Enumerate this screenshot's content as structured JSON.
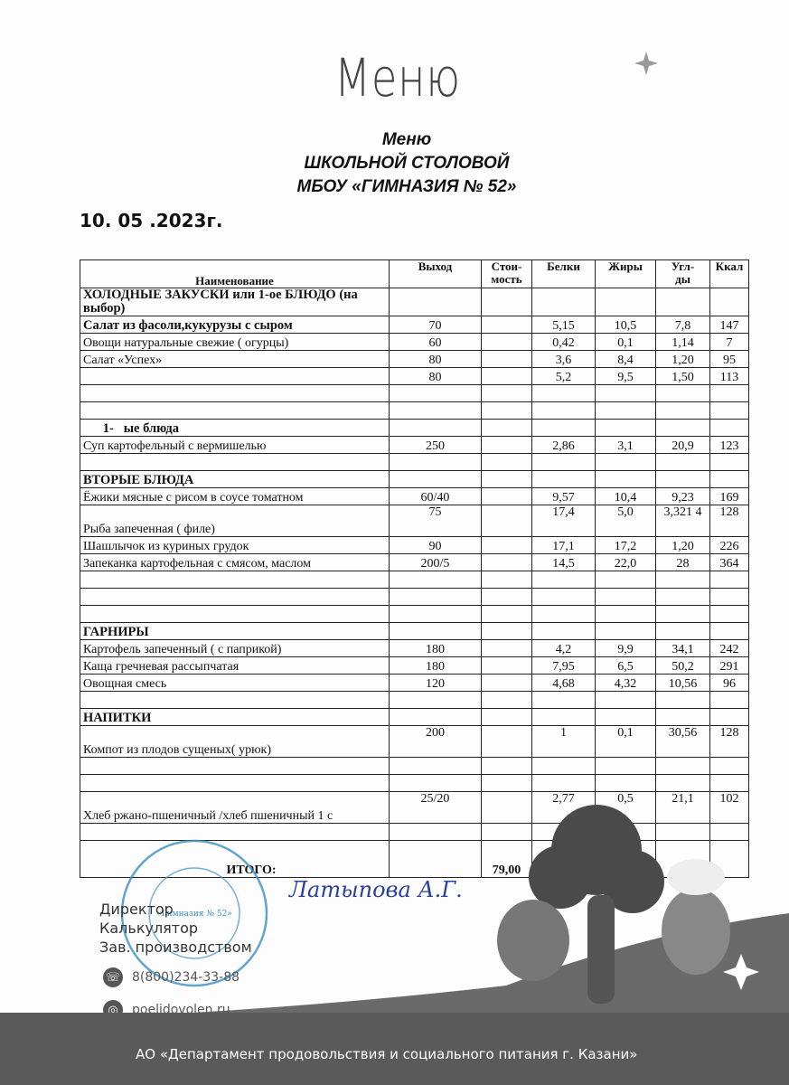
{
  "hand_title": "Меню",
  "header": {
    "line1": "Меню",
    "line2": "ШКОЛЬНОЙ СТОЛОВОЙ",
    "line3": "МБОУ «ГИМНАЗИЯ № 52»"
  },
  "date": "10. 05 .2023г.",
  "table": {
    "columns": [
      "Наименование",
      "Выход",
      "Стои-\nмость",
      "Белки",
      "Жиры",
      "Угл-\nды",
      "Ккал"
    ],
    "rows": [
      {
        "type": "section",
        "name": "ХОЛОДНЫЕ ЗАКУСКИ или 1-ое БЛЮДО (на выбор)",
        "cells": [
          "",
          "",
          "",
          "",
          "",
          ""
        ]
      },
      {
        "type": "section",
        "name": "Салат из фасоли,кукурузы с сыром",
        "cells": [
          "70",
          "",
          "5,15",
          "10,5",
          "7,8",
          "147"
        ]
      },
      {
        "type": "item",
        "name": "Овощи натуральные свежие ( огурцы)",
        "cells": [
          "60",
          "",
          "0,42",
          "0,1",
          "1,14",
          "7"
        ]
      },
      {
        "type": "item",
        "name": "Салат «Успех»",
        "cells": [
          "80",
          "",
          "3,6",
          "8,4",
          "1,20",
          "95"
        ]
      },
      {
        "type": "item",
        "name": "",
        "cells": [
          "80",
          "",
          "5,2",
          "9,5",
          "1,50",
          "113"
        ]
      },
      {
        "type": "item",
        "name": "",
        "cells": [
          "",
          "",
          "",
          "",
          "",
          ""
        ]
      },
      {
        "type": "item",
        "name": "",
        "cells": [
          "",
          "",
          "",
          "",
          "",
          ""
        ]
      },
      {
        "type": "section",
        "name": "      1-   ые блюда",
        "cells": [
          "",
          "",
          "",
          "",
          "",
          ""
        ]
      },
      {
        "type": "item",
        "name": "Суп картофельный с вермишелью",
        "cells": [
          "250",
          "",
          "2,86",
          "3,1",
          "20,9",
          "123"
        ]
      },
      {
        "type": "item",
        "name": "",
        "cells": [
          "",
          "",
          "",
          "",
          "",
          ""
        ]
      },
      {
        "type": "section",
        "name": "ВТОРЫЕ БЛЮДА",
        "cells": [
          "",
          "",
          "",
          "",
          "",
          ""
        ]
      },
      {
        "type": "item",
        "name": "Ёжики мясные с рисом в соусе томатном",
        "cells": [
          "60/40",
          "",
          "9,57",
          "10,4",
          "9,23",
          "169"
        ]
      },
      {
        "type": "tall",
        "name": "Рыба запеченная ( филе)",
        "cells": [
          "75",
          "",
          "17,4",
          "5,0",
          "3,321 4",
          "128"
        ]
      },
      {
        "type": "item",
        "name": "Шашлычок из куриных грудок",
        "cells": [
          "90",
          "",
          "17,1",
          "17,2",
          "1,20",
          "226"
        ]
      },
      {
        "type": "item",
        "name": "Запеканка картофельная с смясом, маслом",
        "cells": [
          "200/5",
          "",
          "14,5",
          "22,0",
          "28",
          "364"
        ]
      },
      {
        "type": "item",
        "name": "",
        "cells": [
          "",
          "",
          "",
          "",
          "",
          ""
        ]
      },
      {
        "type": "item",
        "name": "",
        "cells": [
          "",
          "",
          "",
          "",
          "",
          ""
        ]
      },
      {
        "type": "item",
        "name": "",
        "cells": [
          "",
          "",
          "",
          "",
          "",
          ""
        ]
      },
      {
        "type": "section",
        "name": "ГАРНИРЫ",
        "cells": [
          "",
          "",
          "",
          "",
          "",
          ""
        ]
      },
      {
        "type": "item",
        "name": "Картофель запеченный ( с паприкой)",
        "cells": [
          "180",
          "",
          "4,2",
          "9,9",
          "34,1",
          "242"
        ]
      },
      {
        "type": "item",
        "name": "Каща гречневая рассыпчатая",
        "cells": [
          "180",
          "",
          "7,95",
          "6,5",
          "50,2",
          "291"
        ]
      },
      {
        "type": "item",
        "name": "Овощная смесь",
        "cells": [
          "120",
          "",
          "4,68",
          "4,32",
          "10,56",
          "96"
        ]
      },
      {
        "type": "item",
        "name": "",
        "cells": [
          "",
          "",
          "",
          "",
          "",
          ""
        ]
      },
      {
        "type": "section",
        "name": "НАПИТКИ",
        "cells": [
          "",
          "",
          "",
          "",
          "",
          ""
        ]
      },
      {
        "type": "tall",
        "name": "Компот из плодов сущеных( урюк)",
        "cells": [
          "200",
          "",
          "1",
          "0,1",
          "30,56",
          "128"
        ]
      },
      {
        "type": "item",
        "name": "",
        "cells": [
          "",
          "",
          "",
          "",
          "",
          ""
        ]
      },
      {
        "type": "item",
        "name": "",
        "cells": [
          "",
          "",
          "",
          "",
          "",
          ""
        ]
      },
      {
        "type": "tall",
        "name": "Хлеб ржано-пшеничный /хлеб пшеничный 1 с",
        "cells": [
          "25/20",
          "",
          "2,77",
          "0,5",
          "21,1",
          "102"
        ]
      },
      {
        "type": "item",
        "name": "",
        "cells": [
          "",
          "",
          "",
          "",
          "",
          ""
        ]
      },
      {
        "type": "total",
        "name": "ИТОГО:",
        "cells": [
          "",
          "79,00",
          "",
          "",
          "",
          ""
        ]
      }
    ]
  },
  "signatures": {
    "director": "Директор",
    "calculator": "Калькулятор",
    "production": "Зав. производством",
    "signature_text": "Латыпова А.Г."
  },
  "contacts": {
    "phone": "8(800)234-33-88",
    "website": "poelidovolen.ru",
    "phone_icon": "phone-icon",
    "web_icon": "globe-icon"
  },
  "footer": "АО «Департамент продовольствия и социального питания г. Казани»",
  "stamp_text": "МБОУ «Гимназия № 52» г.Казани",
  "colors": {
    "stamp": "#3a8fc0",
    "signature": "#2b3f9e",
    "band": "#5a5a5a"
  }
}
